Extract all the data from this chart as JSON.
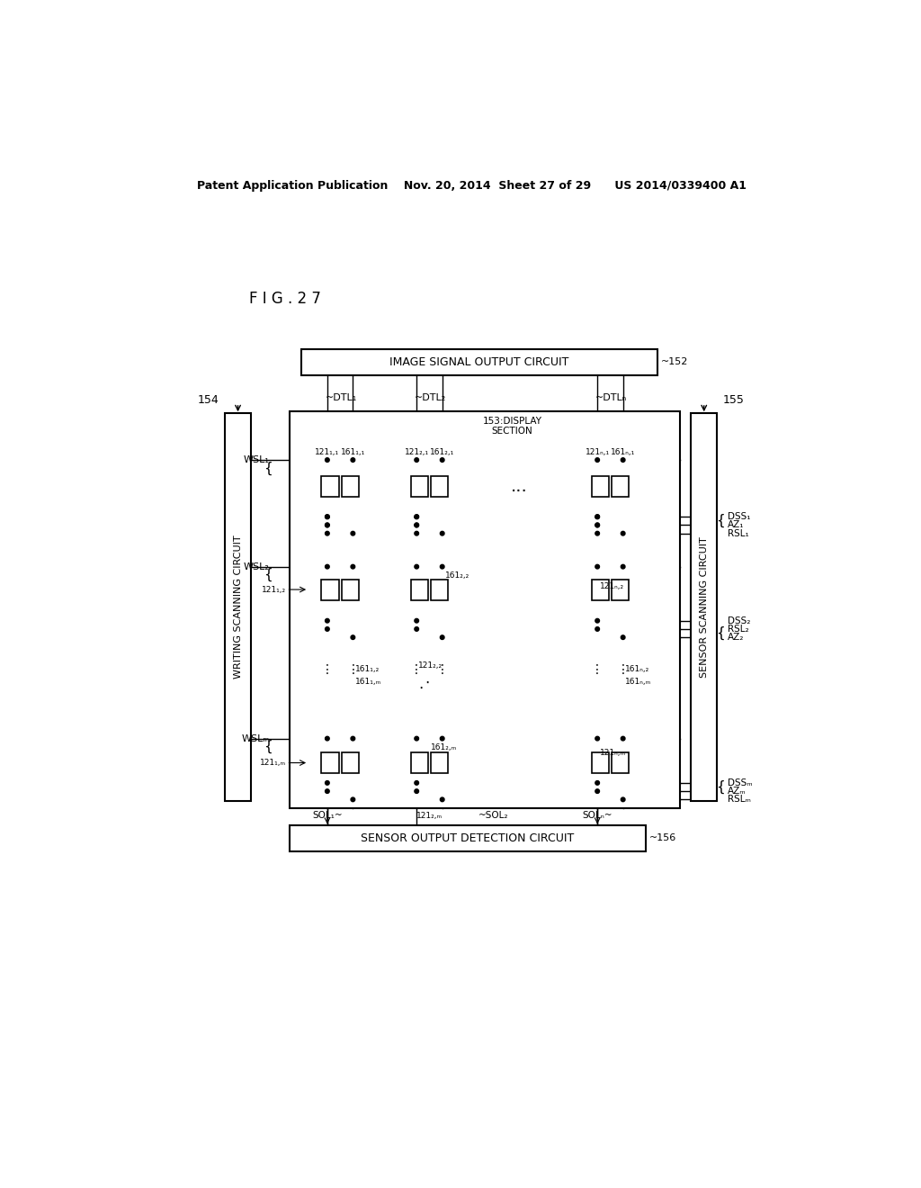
{
  "bg_color": "#ffffff",
  "header_text": "Patent Application Publication    Nov. 20, 2014  Sheet 27 of 29      US 2014/0339400 A1",
  "fig_label": "F I G . 2 7",
  "image_circuit_label": "IMAGE SIGNAL OUTPUT CIRCUIT",
  "image_circuit_ref": "~152",
  "sensor_circuit_label": "SENSOR OUTPUT DETECTION CIRCUIT",
  "sensor_circuit_ref": "~156",
  "writing_scan_label": "WRITING SCANNING CIRCUIT",
  "writing_scan_ref": "154",
  "sensor_scan_label": "SENSOR SCANNING CIRCUIT",
  "sensor_scan_ref": "155",
  "display_section": "153:DISPLAY\nSECTION"
}
